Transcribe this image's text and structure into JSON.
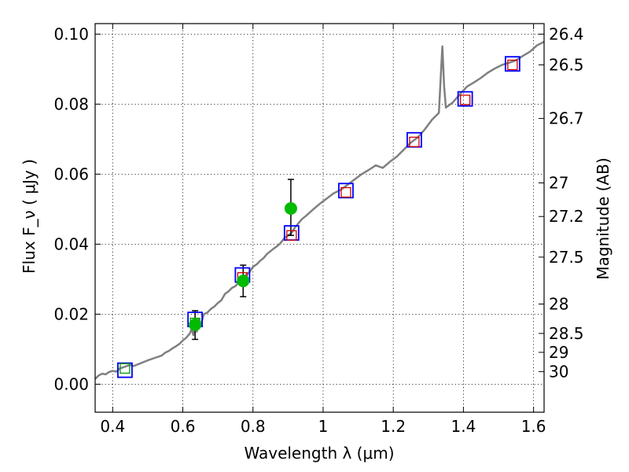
{
  "chart_data": {
    "type": "scatter",
    "xlabel": "Wavelength  λ (μm)",
    "ylabel": "Flux  F_ν  ( μJy )",
    "ylabel_right": "Magnitude (AB)",
    "xlim": [
      0.35,
      1.63
    ],
    "ylim": [
      -0.008,
      0.103
    ],
    "x_ticks": [
      0.4,
      0.6,
      0.8,
      1.0,
      1.2,
      1.4,
      1.6
    ],
    "x_tick_labels": [
      "0.4",
      "0.6",
      "0.8",
      "1",
      "1.2",
      "1.4",
      "1.6"
    ],
    "y_ticks": [
      0.0,
      0.02,
      0.04,
      0.06,
      0.08,
      0.1
    ],
    "y_tick_labels": [
      "0.00",
      "0.02",
      "0.04",
      "0.06",
      "0.08",
      "0.10"
    ],
    "magnitude_ticks": [
      {
        "label": "26.4",
        "flux": 0.1
      },
      {
        "label": "26.5",
        "flux": 0.0912
      },
      {
        "label": "26.7",
        "flux": 0.0759
      },
      {
        "label": "27",
        "flux": 0.0575
      },
      {
        "label": "27.2",
        "flux": 0.0479
      },
      {
        "label": "27.5",
        "flux": 0.0363
      },
      {
        "label": "28",
        "flux": 0.0229
      },
      {
        "label": "28.5",
        "flux": 0.0145
      },
      {
        "label": "29",
        "flux": 0.0091
      },
      {
        "label": "30",
        "flux": 0.0036
      }
    ],
    "grid": true,
    "series": [
      {
        "kind": "spectrum",
        "color": "#808080",
        "points": [
          [
            0.35,
            0.0015
          ],
          [
            0.36,
            0.0025
          ],
          [
            0.37,
            0.003
          ],
          [
            0.38,
            0.0028
          ],
          [
            0.39,
            0.0035
          ],
          [
            0.4,
            0.0038
          ],
          [
            0.41,
            0.0036
          ],
          [
            0.42,
            0.0045
          ],
          [
            0.43,
            0.0048
          ],
          [
            0.44,
            0.0052
          ],
          [
            0.45,
            0.0055
          ],
          [
            0.46,
            0.0052
          ],
          [
            0.47,
            0.0056
          ],
          [
            0.48,
            0.006
          ],
          [
            0.5,
            0.0068
          ],
          [
            0.52,
            0.0075
          ],
          [
            0.54,
            0.0082
          ],
          [
            0.55,
            0.009
          ],
          [
            0.56,
            0.0095
          ],
          [
            0.57,
            0.0102
          ],
          [
            0.58,
            0.0108
          ],
          [
            0.59,
            0.0115
          ],
          [
            0.6,
            0.0125
          ],
          [
            0.61,
            0.0133
          ],
          [
            0.62,
            0.0145
          ],
          [
            0.625,
            0.0158
          ],
          [
            0.63,
            0.014
          ],
          [
            0.635,
            0.0175
          ],
          [
            0.64,
            0.015
          ],
          [
            0.645,
            0.0185
          ],
          [
            0.65,
            0.0165
          ],
          [
            0.66,
            0.02
          ],
          [
            0.67,
            0.0205
          ],
          [
            0.68,
            0.0215
          ],
          [
            0.69,
            0.0222
          ],
          [
            0.7,
            0.0232
          ],
          [
            0.71,
            0.024
          ],
          [
            0.72,
            0.0258
          ],
          [
            0.73,
            0.0265
          ],
          [
            0.74,
            0.0275
          ],
          [
            0.75,
            0.028
          ],
          [
            0.76,
            0.0292
          ],
          [
            0.77,
            0.0305
          ],
          [
            0.78,
            0.0312
          ],
          [
            0.79,
            0.032
          ],
          [
            0.8,
            0.0335
          ],
          [
            0.81,
            0.0342
          ],
          [
            0.82,
            0.0352
          ],
          [
            0.83,
            0.036
          ],
          [
            0.84,
            0.0372
          ],
          [
            0.85,
            0.038
          ],
          [
            0.86,
            0.0388
          ],
          [
            0.87,
            0.0395
          ],
          [
            0.88,
            0.0405
          ],
          [
            0.89,
            0.0418
          ],
          [
            0.9,
            0.0425
          ],
          [
            0.91,
            0.0432
          ],
          [
            0.92,
            0.0448
          ],
          [
            0.93,
            0.046
          ],
          [
            0.94,
            0.0472
          ],
          [
            0.95,
            0.048
          ],
          [
            0.97,
            0.0498
          ],
          [
            0.99,
            0.0515
          ],
          [
            1.01,
            0.053
          ],
          [
            1.03,
            0.0545
          ],
          [
            1.05,
            0.0555
          ],
          [
            1.07,
            0.057
          ],
          [
            1.09,
            0.0585
          ],
          [
            1.11,
            0.06
          ],
          [
            1.13,
            0.0612
          ],
          [
            1.15,
            0.0625
          ],
          [
            1.17,
            0.0618
          ],
          [
            1.19,
            0.0635
          ],
          [
            1.21,
            0.065
          ],
          [
            1.23,
            0.067
          ],
          [
            1.25,
            0.069
          ],
          [
            1.27,
            0.0705
          ],
          [
            1.29,
            0.0728
          ],
          [
            1.31,
            0.0755
          ],
          [
            1.33,
            0.0775
          ],
          [
            1.335,
            0.087
          ],
          [
            1.34,
            0.0965
          ],
          [
            1.345,
            0.085
          ],
          [
            1.35,
            0.079
          ],
          [
            1.37,
            0.0805
          ],
          [
            1.39,
            0.0828
          ],
          [
            1.41,
            0.085
          ],
          [
            1.43,
            0.0862
          ],
          [
            1.45,
            0.0875
          ],
          [
            1.47,
            0.089
          ],
          [
            1.49,
            0.0902
          ],
          [
            1.51,
            0.0912
          ],
          [
            1.53,
            0.0918
          ],
          [
            1.55,
            0.0925
          ],
          [
            1.57,
            0.0938
          ],
          [
            1.59,
            0.095
          ],
          [
            1.61,
            0.0968
          ],
          [
            1.63,
            0.0978
          ]
        ]
      },
      {
        "kind": "model-squares",
        "color": "#0000ff",
        "x": [
          0.435,
          0.635,
          0.77,
          0.91,
          1.065,
          1.26,
          1.405,
          1.54
        ],
        "y": [
          0.004,
          0.0185,
          0.0312,
          0.0432,
          0.0553,
          0.0698,
          0.0815,
          0.0915
        ]
      },
      {
        "kind": "inner-squares",
        "colors": [
          "#00a000",
          "#00a000",
          "#cc0000",
          "#cc0000",
          "#cc0000",
          "#cc0000",
          "#cc0000",
          "#cc0000"
        ],
        "x": [
          0.435,
          0.635,
          0.77,
          0.91,
          1.065,
          1.26,
          1.405,
          1.54
        ],
        "y": [
          0.0045,
          0.0175,
          0.0305,
          0.0425,
          0.0548,
          0.0692,
          0.0812,
          0.0912
        ]
      },
      {
        "kind": "observed",
        "color": "#00bb00",
        "x": [
          0.635,
          0.772,
          0.908
        ],
        "y": [
          0.017,
          0.0295,
          0.0502
        ],
        "yerr_low": [
          0.0128,
          0.025,
          0.0425
        ],
        "yerr_high": [
          0.021,
          0.034,
          0.0585
        ]
      }
    ]
  }
}
